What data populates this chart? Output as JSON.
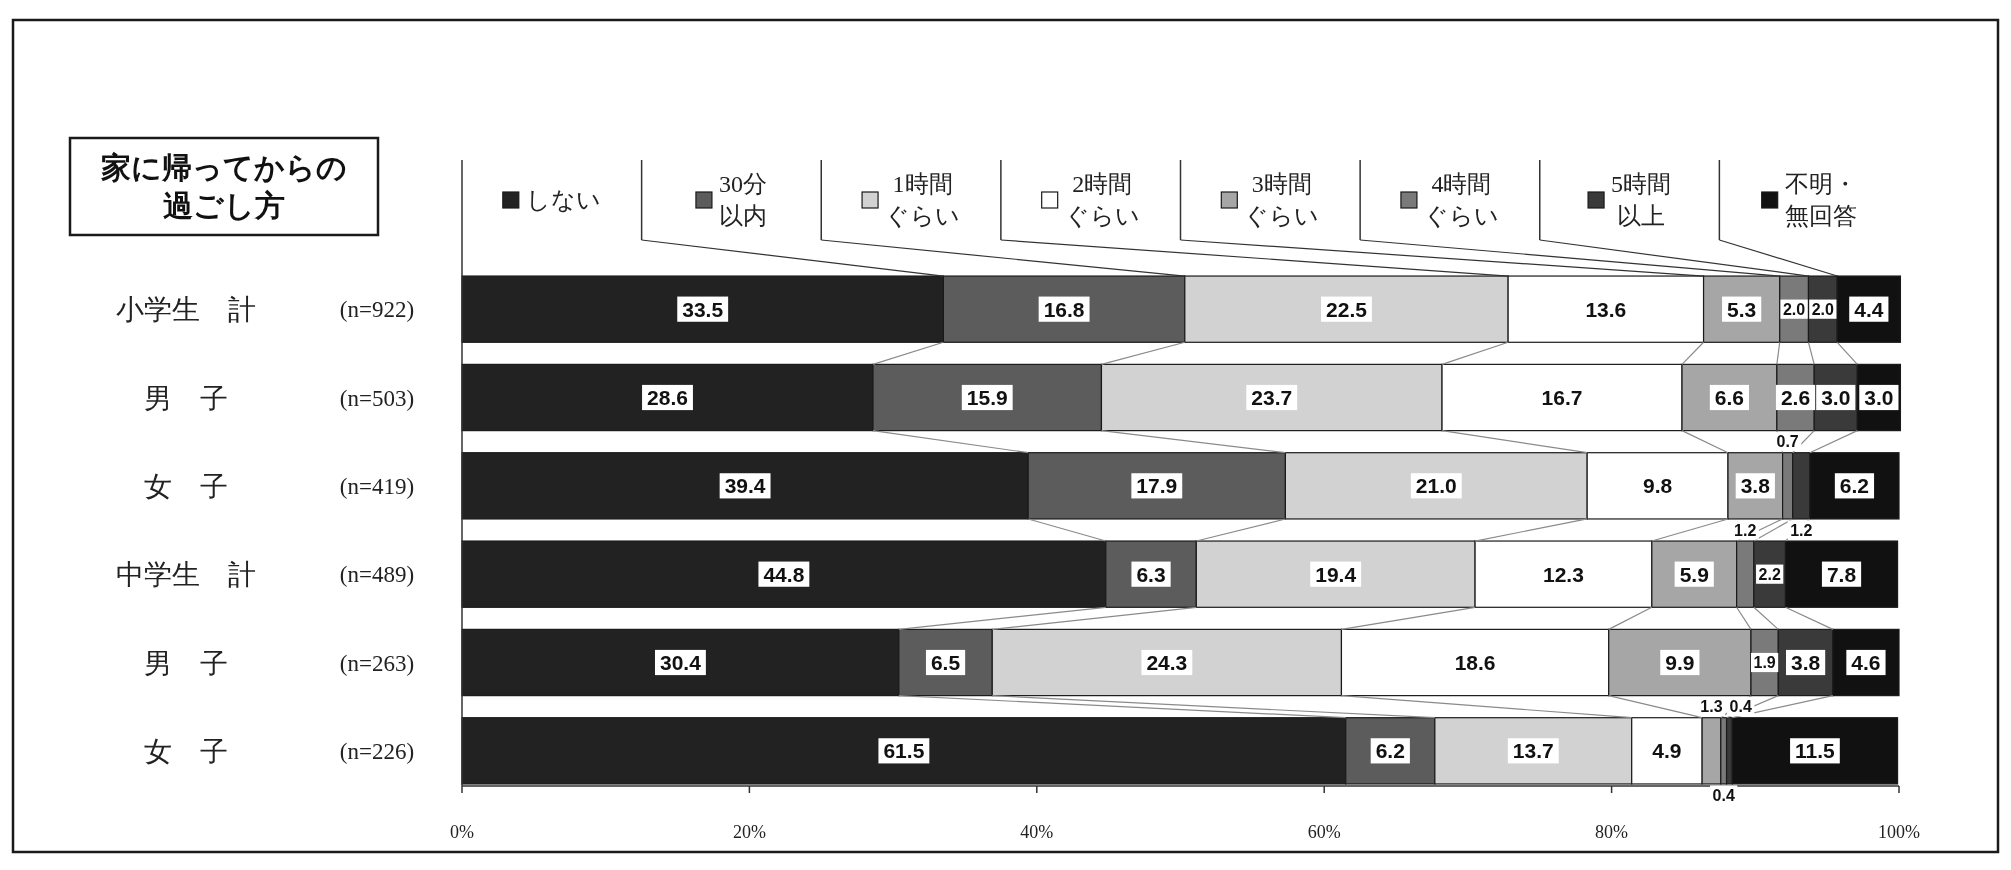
{
  "chart_data": {
    "type": "bar",
    "orientation": "horizontal",
    "stacked": true,
    "title": "家に帰ってからの過ごし方",
    "categories": [
      "小学生　計",
      "男　子",
      "女　子",
      "中学生　計",
      "男　子",
      "女　子"
    ],
    "y2_categories": [
      "(n=922)",
      "(n=503)",
      "(n=419)",
      "(n=489)",
      "(n=263)",
      "(n=226)"
    ],
    "series": [
      {
        "name": "しない",
        "color": "#222222",
        "values": [
          33.5,
          28.6,
          39.4,
          44.8,
          30.4,
          61.5
        ],
        "value_labels": [
          "33.5",
          "28.6",
          "39.4",
          "44.8",
          "30.4",
          "61.5"
        ]
      },
      {
        "name": "30分以内",
        "color": "#5c5c5c",
        "values": [
          16.8,
          15.9,
          17.9,
          6.3,
          6.5,
          6.2
        ],
        "value_labels": [
          "16.8",
          "15.9",
          "17.9",
          "6.3",
          "6.5",
          "6.2"
        ]
      },
      {
        "name": "1時間ぐらい",
        "color": "#d2d2d2",
        "values": [
          22.5,
          23.7,
          21.0,
          19.4,
          24.3,
          13.7
        ],
        "value_labels": [
          "22.5",
          "23.7",
          "21.0",
          "19.4",
          "24.3",
          "13.7"
        ]
      },
      {
        "name": "2時間ぐらい",
        "color": "#ffffff",
        "values": [
          13.6,
          16.7,
          9.8,
          12.3,
          18.6,
          4.9
        ],
        "value_labels": [
          "13.6",
          "16.7",
          "9.8",
          "12.3",
          "18.6",
          "4.9"
        ]
      },
      {
        "name": "3時間ぐらい",
        "color": "#a6a6a6",
        "values": [
          5.3,
          6.6,
          3.8,
          5.9,
          9.9,
          1.3
        ],
        "value_labels": [
          "5.3",
          "6.6",
          "3.8",
          "5.9",
          "9.9",
          "1.3"
        ]
      },
      {
        "name": "4時間ぐらい",
        "color": "#7a7a7a",
        "values": [
          2.0,
          2.6,
          0.7,
          1.2,
          1.9,
          0.4
        ],
        "value_labels": [
          "2.0",
          "2.6",
          "0.7",
          "1.2",
          "1.9",
          "0.4"
        ]
      },
      {
        "name": "5時間以上",
        "color": "#3a3a3a",
        "values": [
          2.0,
          3.0,
          1.2,
          2.2,
          3.8,
          0.4
        ],
        "value_labels": [
          "2.0",
          "3.0",
          "1.2",
          "2.2",
          "3.8",
          "0.4"
        ]
      },
      {
        "name": "不明・無回答",
        "color": "#111111",
        "values": [
          4.4,
          3.0,
          6.2,
          7.8,
          4.6,
          11.5
        ],
        "value_labels": [
          "4.4",
          "3.0",
          "6.2",
          "7.8",
          "4.6",
          "11.5"
        ]
      }
    ],
    "xlim": [
      0,
      100
    ],
    "xticks": [
      {
        "value": 0,
        "label": "0%"
      },
      {
        "value": 20,
        "label": "20%"
      },
      {
        "value": 40,
        "label": "40%"
      },
      {
        "value": 60,
        "label": "60%"
      },
      {
        "value": 80,
        "label": "80%"
      },
      {
        "value": 100,
        "label": "100%"
      }
    ],
    "legend": "top"
  }
}
